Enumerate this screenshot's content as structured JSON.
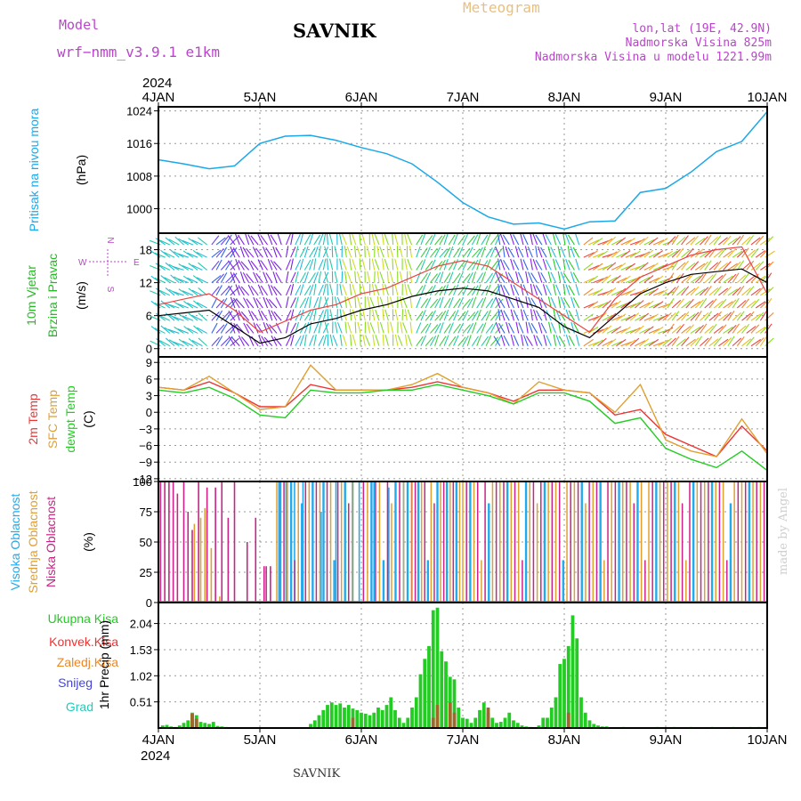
{
  "header": {
    "model_label": "Model",
    "model_name": "wrf−nmm_v3.9.1  e1km",
    "station": "SAVNIK",
    "product": "Meteogram",
    "lonlat": "lon,lat (19E, 42.9N)",
    "elevation": "Nadmorska Visina 825m",
    "model_elevation": "Nadmorska Visina u modelu 1221.99m",
    "year": "2024",
    "footer_station": "SAVNIK",
    "watermark": "made by Angel"
  },
  "colors": {
    "pressure": "#1ba8e8",
    "wind_label": "#22bb22",
    "temp2m": "#ee3333",
    "sfc_temp": "#e0a030",
    "dewpoint": "#22cc22",
    "cloud_high": "#22aaee",
    "cloud_mid": "#e0a030",
    "cloud_low": "#cc2288",
    "precip_total": "#22cc22",
    "precip_conv": "#ee3333",
    "precip_strat": "#ee8822",
    "snow": "#4444dd",
    "graupel": "#22ccbb",
    "magenta_text": "#bb44cc"
  },
  "chart_data": [
    {
      "type": "line",
      "panel": "pressure",
      "x_tick_labels": [
        "4JAN",
        "5JAN",
        "6JAN",
        "7JAN",
        "8JAN",
        "9JAN",
        "10JAN"
      ],
      "ylabel": [
        "Pritisak na nivou mora",
        "(hPa)"
      ],
      "y_ticks": [
        "1000",
        "1008",
        "1016",
        "1024"
      ],
      "ylim": [
        994,
        1025
      ],
      "x_hours": [
        0,
        6,
        12,
        18,
        24,
        30,
        36,
        42,
        48,
        54,
        60,
        66,
        72,
        78,
        84,
        90,
        96,
        102,
        108,
        114,
        120,
        126,
        132,
        138,
        144
      ],
      "values": [
        1012.0,
        1011.0,
        1009.8,
        1010.5,
        1016.0,
        1017.8,
        1018.0,
        1016.8,
        1015.0,
        1013.5,
        1011.0,
        1006.5,
        1001.5,
        998.0,
        996.2,
        996.5,
        995.0,
        996.8,
        997.0,
        1004.0,
        1005.0,
        1009.0,
        1014.0,
        1016.5,
        1023.8
      ],
      "grid": true
    },
    {
      "type": "line",
      "panel": "wind",
      "ylabel": [
        "10m Vjetar",
        "Brzina i Pravac",
        "(m/s)"
      ],
      "compass": {
        "n": "N",
        "e": "E",
        "s": "S",
        "w": "W"
      },
      "y_ticks": [
        "0",
        "6",
        "12",
        "18"
      ],
      "ylim": [
        -1.5,
        21
      ],
      "x_hours": [
        0,
        6,
        12,
        18,
        24,
        30,
        36,
        42,
        48,
        54,
        60,
        66,
        72,
        78,
        84,
        90,
        96,
        102,
        108,
        114,
        120,
        126,
        132,
        138,
        144
      ],
      "series": [
        {
          "role": "speed",
          "values": [
            6,
            6.5,
            7,
            4,
            1,
            2,
            4.5,
            5.5,
            7,
            8,
            9.5,
            10.5,
            11,
            10.5,
            9,
            7.5,
            4,
            2,
            6,
            10,
            12,
            13.5,
            14,
            14.5,
            12
          ]
        },
        {
          "role": "gust",
          "values": [
            8,
            9,
            10,
            7,
            3,
            5,
            7,
            8,
            10,
            11,
            13,
            15,
            16,
            15,
            12,
            9,
            6,
            3,
            9,
            13,
            15,
            17,
            18,
            18.5,
            10
          ]
        }
      ],
      "grid": true
    },
    {
      "type": "line",
      "panel": "temperature",
      "ylabel": [
        "2m Temp",
        "SFC Temp",
        "dewpt Temp",
        "(C)"
      ],
      "y_ticks": [
        "−12",
        "−9",
        "−6",
        "−3",
        "0",
        "3",
        "6",
        "9"
      ],
      "ylim": [
        -12.5,
        10
      ],
      "x_hours": [
        0,
        6,
        12,
        18,
        24,
        30,
        36,
        42,
        48,
        54,
        60,
        66,
        72,
        78,
        84,
        90,
        96,
        102,
        108,
        114,
        120,
        126,
        132,
        138,
        144
      ],
      "series": [
        {
          "name": "2m Temp",
          "values": [
            4.5,
            4,
            5.5,
            3.5,
            1,
            1,
            5,
            4,
            4,
            4,
            4.5,
            5.5,
            4.5,
            3.5,
            2,
            4,
            4,
            3.5,
            -0.5,
            0.5,
            -4,
            -6,
            -8,
            -2.5,
            -7
          ]
        },
        {
          "name": "SFC Temp",
          "values": [
            4.5,
            4,
            6.5,
            3.5,
            0.5,
            1,
            8.5,
            4,
            4,
            4,
            5,
            7,
            4.5,
            3.5,
            1.5,
            5.5,
            4,
            3.5,
            0,
            5,
            -5,
            -7,
            -8,
            -1.2,
            -7.5
          ]
        },
        {
          "name": "dewpt Temp",
          "values": [
            4,
            3.5,
            4.5,
            2.5,
            -0.5,
            -1,
            4,
            3.5,
            3.5,
            4,
            4,
            5,
            4,
            3,
            1.5,
            3.5,
            3.5,
            2,
            -2,
            -1,
            -6.5,
            -8.5,
            -10,
            -7,
            -10.5
          ]
        }
      ],
      "grid": true
    },
    {
      "type": "bar",
      "panel": "cloud",
      "ylabel": [
        "Visoka Oblacnost",
        "Srednja Oblacnost",
        "Niska Oblacnost",
        "(%)"
      ],
      "y_ticks": [
        "0",
        "25",
        "50",
        "75",
        "100"
      ],
      "ylim": [
        0,
        100
      ],
      "series": [
        {
          "name": "Niska Oblacnost",
          "x_hours": [
            0.5,
            1.5,
            2.5,
            3.5,
            4.5,
            6,
            7,
            8,
            9.5,
            11.5,
            13.5,
            15,
            16.5,
            18,
            21,
            23,
            25,
            25.5,
            26.5
          ],
          "values": [
            100,
            100,
            100,
            100,
            90,
            100,
            75,
            60,
            100,
            95,
            95,
            100,
            70,
            100,
            50,
            70,
            30,
            30,
            30
          ]
        },
        {
          "name": "Srednja Oblacnost",
          "x_hours": [
            8.5,
            10,
            11,
            12.5,
            14.5
          ],
          "values": [
            65,
            70,
            78,
            45,
            5
          ]
        },
        {
          "name": "Visoka Oblacnost",
          "x_hours": [
            28.5,
            30.2,
            32.2,
            34.2,
            38.5,
            42,
            46,
            47.5,
            51,
            54.5,
            58
          ],
          "values": [
            100,
            100,
            100,
            100,
            75,
            100,
            100,
            100,
            100,
            95,
            100
          ]
        }
      ],
      "dense_ranges": [
        {
          "from": 28,
          "to": 46,
          "step": 0.85,
          "palette": [
            "#e0a030",
            "#22aaee",
            "#cc2288"
          ]
        },
        {
          "from": 48.5,
          "to": 60,
          "step": 0.95,
          "palette": [
            "#cc2288",
            "#e0a030",
            "#22aaee"
          ]
        },
        {
          "from": 60,
          "to": 72,
          "step": 0.75,
          "palette": [
            "#e0a030",
            "#cc2288",
            "#22aaee"
          ]
        },
        {
          "from": 72,
          "to": 144,
          "step": 0.88,
          "palette": [
            "#e0a030",
            "#cc2288",
            "#22aaee",
            "#e0a030",
            "#cc2288"
          ]
        }
      ],
      "grid": true
    },
    {
      "type": "bar",
      "panel": "precipitation",
      "legend": [
        "Ukupna Kisa",
        "Konvek.Kisa",
        "Zaledj.Kisa",
        "Snijeg",
        "Grad"
      ],
      "ylabel": [
        "1hr Precip",
        "(mm)"
      ],
      "y_ticks": [
        "0.51",
        "1.02",
        "1.53",
        "2.04"
      ],
      "ylim": [
        0,
        2.45
      ],
      "x_tick_labels": [
        "4JAN",
        "5JAN",
        "6JAN",
        "7JAN",
        "8JAN",
        "9JAN",
        "10JAN"
      ],
      "year": "2024",
      "x_hours": [
        1,
        2,
        3,
        4,
        5,
        6,
        7,
        8,
        9,
        10,
        11,
        12,
        13,
        14,
        15,
        16,
        36,
        37,
        38,
        39,
        40,
        41,
        42,
        43,
        44,
        45,
        46,
        47,
        48,
        49,
        50,
        51,
        52,
        53,
        54,
        55,
        56,
        57,
        58,
        59,
        60,
        61,
        62,
        63,
        64,
        65,
        66,
        67,
        68,
        69,
        70,
        71,
        72,
        73,
        74,
        75,
        76,
        77,
        78,
        79,
        80,
        81,
        82,
        83,
        84,
        85,
        86,
        87,
        88,
        89,
        90,
        91,
        92,
        93,
        94,
        95,
        96,
        97,
        98,
        99,
        100,
        101,
        102,
        103,
        104,
        105,
        106,
        110,
        118,
        122,
        126,
        131,
        136,
        140,
        142
      ],
      "values": [
        0.05,
        0.06,
        0.03,
        0.02,
        0.05,
        0.1,
        0.15,
        0.3,
        0.25,
        0.12,
        0.1,
        0.08,
        0.12,
        0.04,
        0.03,
        0.02,
        0.08,
        0.15,
        0.25,
        0.35,
        0.45,
        0.5,
        0.45,
        0.48,
        0.4,
        0.45,
        0.38,
        0.35,
        0.3,
        0.28,
        0.25,
        0.3,
        0.4,
        0.35,
        0.45,
        0.6,
        0.35,
        0.2,
        0.1,
        0.2,
        0.4,
        0.6,
        1.05,
        1.35,
        1.6,
        2.3,
        2.35,
        1.5,
        1.3,
        1.0,
        0.95,
        0.4,
        0.2,
        0.18,
        0.1,
        0.2,
        0.35,
        0.5,
        0.3,
        0.2,
        0.1,
        0.12,
        0.2,
        0.3,
        0.15,
        0.1,
        0.05,
        0.03,
        0.02,
        0.01,
        0.05,
        0.2,
        0.2,
        0.4,
        0.6,
        1.25,
        1.35,
        1.6,
        2.2,
        1.75,
        0.6,
        0.3,
        0.15,
        0.08,
        0.05,
        0.03,
        0.03,
        0.02,
        0.02,
        0.02,
        0.02,
        0.02,
        0.02,
        0.02,
        0.02
      ],
      "conv_hours": [
        8,
        9,
        46,
        65,
        66,
        69,
        70,
        78,
        97
      ],
      "conv_values": [
        0.28,
        0.18,
        0.2,
        0.2,
        0.45,
        0.5,
        0.3,
        0.4,
        0.3
      ],
      "grid": true
    }
  ]
}
